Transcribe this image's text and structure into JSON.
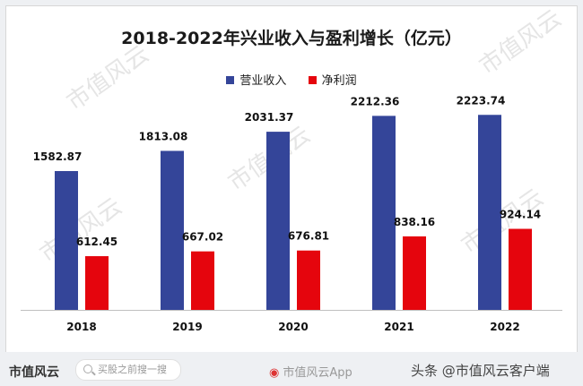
{
  "watermark": "市值风云",
  "chart_data": {
    "type": "bar",
    "title": "2018-2022年兴业收入与盈利增长（亿元）",
    "categories": [
      "2018",
      "2019",
      "2020",
      "2021",
      "2022"
    ],
    "series": [
      {
        "name": "营业收入",
        "color": "#344599",
        "values": [
          1582.87,
          1813.08,
          2031.37,
          2212.36,
          2223.74
        ]
      },
      {
        "name": "净利润",
        "color": "#e5050d",
        "values": [
          612.45,
          667.02,
          676.81,
          838.16,
          924.14
        ]
      }
    ],
    "ylim": [
      0,
      2400
    ],
    "grid": false,
    "legend": "top-center"
  },
  "footer": {
    "logo": "市值风云",
    "search_placeholder": "买股之前搜一搜",
    "app_label": "市值风云App",
    "credit": "头条 @市值风云客户端"
  }
}
